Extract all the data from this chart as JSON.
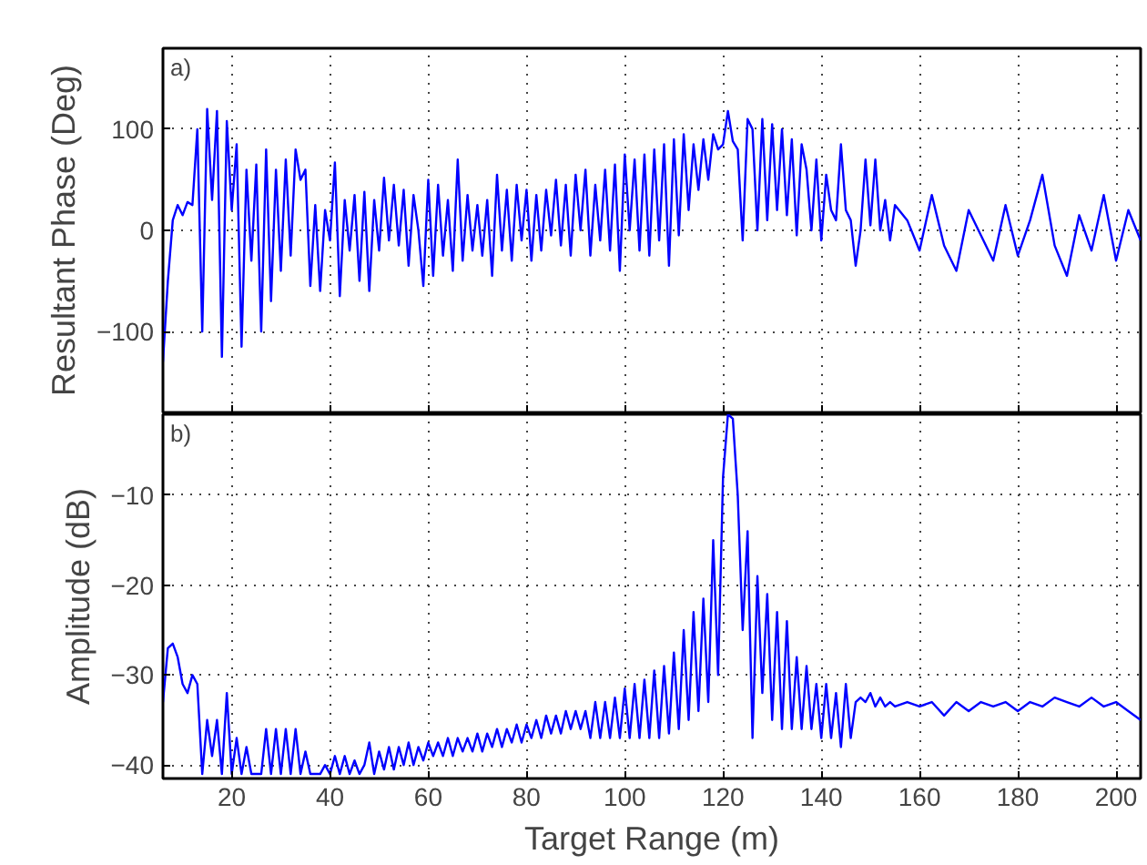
{
  "chart_data": [
    {
      "type": "line",
      "ylabel": "Resultant Phase (Deg)",
      "annotations": [
        "a)"
      ],
      "xlim": [
        6,
        205
      ],
      "ylim": [
        -180,
        180
      ],
      "xticks": [
        20,
        40,
        60,
        80,
        100,
        120,
        140,
        160,
        180,
        200
      ],
      "yticks": [
        -100,
        0,
        100
      ],
      "grid": true,
      "tick_labels": "y",
      "line_style": "solid",
      "series": [
        {
          "color": "#0000ff",
          "x": [
            6,
            7,
            8,
            9,
            10,
            11,
            12,
            13,
            14,
            15,
            16,
            17,
            18,
            19,
            20,
            21,
            22,
            23,
            24,
            25,
            26,
            27,
            28,
            29,
            30,
            31,
            32,
            33,
            34,
            35,
            36,
            37,
            38,
            39,
            40,
            41,
            42,
            43,
            44,
            45,
            46,
            47,
            48,
            49,
            50,
            51,
            52,
            53,
            54,
            55,
            56,
            57,
            58,
            59,
            60,
            61,
            62,
            63,
            64,
            65,
            66,
            67,
            68,
            69,
            70,
            71,
            72,
            73,
            74,
            75,
            76,
            77,
            78,
            79,
            80,
            81,
            82,
            83,
            84,
            85,
            86,
            87,
            88,
            89,
            90,
            91,
            92,
            93,
            94,
            95,
            96,
            97,
            98,
            99,
            100,
            101,
            102,
            103,
            104,
            105,
            106,
            107,
            108,
            109,
            110,
            111,
            112,
            113,
            114,
            115,
            116,
            117,
            118,
            119,
            120,
            121,
            122,
            123,
            124,
            125,
            126,
            127,
            128,
            129,
            130,
            131,
            132,
            133,
            134,
            135,
            136,
            137,
            138,
            139,
            140,
            141,
            142,
            143,
            144,
            145,
            146,
            147,
            148,
            149,
            150,
            151,
            152,
            153,
            154,
            155,
            157.5,
            160,
            162.5,
            165,
            167.5,
            170,
            172.5,
            175,
            177.5,
            180,
            182.5,
            185,
            187.5,
            190,
            192.5,
            195,
            197.5,
            200,
            202.5,
            205
          ],
          "values": [
            -130,
            -50,
            10,
            25,
            15,
            28,
            25,
            100,
            -100,
            120,
            30,
            118,
            -125,
            108,
            20,
            85,
            -115,
            60,
            -30,
            65,
            -100,
            80,
            -70,
            60,
            -40,
            70,
            -25,
            80,
            50,
            60,
            -55,
            25,
            -60,
            20,
            -10,
            67,
            -65,
            30,
            -20,
            35,
            -50,
            38,
            -60,
            30,
            -20,
            52,
            -10,
            45,
            -15,
            40,
            -35,
            35,
            0,
            -55,
            50,
            -45,
            45,
            -25,
            30,
            -40,
            70,
            -30,
            35,
            -20,
            25,
            -25,
            30,
            -45,
            55,
            -20,
            40,
            -30,
            45,
            -10,
            40,
            -30,
            35,
            -20,
            40,
            -5,
            50,
            -15,
            45,
            -25,
            55,
            0,
            60,
            -25,
            45,
            -10,
            60,
            -20,
            65,
            -40,
            75,
            0,
            70,
            -20,
            75,
            -25,
            80,
            -10,
            85,
            -35,
            90,
            -5,
            95,
            20,
            85,
            40,
            90,
            50,
            95,
            80,
            85,
            118,
            88,
            80,
            -10,
            110,
            100,
            0,
            110,
            10,
            105,
            20,
            100,
            15,
            90,
            -5,
            85,
            60,
            0,
            70,
            -10,
            55,
            20,
            10,
            85,
            20,
            10,
            -35,
            0,
            70,
            5,
            70,
            0,
            30,
            -10,
            25,
            10,
            -20,
            35,
            -15,
            -40,
            20,
            -5,
            -30,
            25,
            -25,
            10,
            55,
            -15,
            -45,
            15,
            -20,
            35,
            -30,
            20,
            -10
          ]
        }
      ]
    },
    {
      "type": "line",
      "xlabel": "Target Range (m)",
      "ylabel": "Amplitude (dB)",
      "annotations": [
        "b)"
      ],
      "xlim": [
        6,
        205
      ],
      "ylim": [
        -41.5,
        -1
      ],
      "xticks": [
        20,
        40,
        60,
        80,
        100,
        120,
        140,
        160,
        180,
        200
      ],
      "yticks": [
        -40,
        -30,
        -20,
        -10
      ],
      "grid": true,
      "line_style": "solid",
      "series": [
        {
          "color": "#0000ff",
          "x": [
            6,
            7,
            8,
            9,
            10,
            11,
            12,
            13,
            14,
            15,
            16,
            17,
            18,
            19,
            20,
            21,
            22,
            23,
            24,
            25,
            26,
            27,
            28,
            29,
            30,
            31,
            32,
            33,
            34,
            35,
            36,
            37,
            38,
            39,
            40,
            41,
            42,
            43,
            44,
            45,
            46,
            47,
            48,
            49,
            50,
            51,
            52,
            53,
            54,
            55,
            56,
            57,
            58,
            59,
            60,
            61,
            62,
            63,
            64,
            65,
            66,
            67,
            68,
            69,
            70,
            71,
            72,
            73,
            74,
            75,
            76,
            77,
            78,
            79,
            80,
            81,
            82,
            83,
            84,
            85,
            86,
            87,
            88,
            89,
            90,
            91,
            92,
            93,
            94,
            95,
            96,
            97,
            98,
            99,
            100,
            101,
            102,
            103,
            104,
            105,
            106,
            107,
            108,
            109,
            110,
            111,
            112,
            113,
            114,
            115,
            116,
            117,
            118,
            119,
            120,
            121,
            122,
            123,
            124,
            125,
            126,
            127,
            128,
            129,
            130,
            131,
            132,
            133,
            134,
            135,
            136,
            137,
            138,
            139,
            140,
            141,
            142,
            143,
            144,
            145,
            146,
            147,
            148,
            149,
            150,
            151,
            152,
            153,
            154,
            155,
            157.5,
            160,
            162.5,
            165,
            167.5,
            170,
            172.5,
            175,
            177.5,
            180,
            182.5,
            185,
            187.5,
            190,
            192.5,
            195,
            197.5,
            200,
            202.5,
            205
          ],
          "values": [
            -33,
            -27,
            -26.5,
            -28,
            -31,
            -32,
            -30,
            -31,
            -41,
            -35,
            -39,
            -35,
            -41,
            -32,
            -41,
            -37,
            -41,
            -38,
            -41,
            -41,
            -41,
            -36,
            -41,
            -36,
            -41,
            -36,
            -41,
            -36,
            -41,
            -38.5,
            -41,
            -41,
            -41,
            -40,
            -41,
            -39,
            -41,
            -39,
            -41,
            -39.5,
            -41,
            -40,
            -37.5,
            -41,
            -38.5,
            -40.5,
            -38,
            -40.5,
            -38,
            -40,
            -37.5,
            -40,
            -38,
            -39.5,
            -37.5,
            -39,
            -37.5,
            -39,
            -37,
            -39,
            -37,
            -38.5,
            -37,
            -38.5,
            -36.5,
            -38.5,
            -36.5,
            -38,
            -36,
            -38,
            -36,
            -37.5,
            -35.5,
            -37.5,
            -35.5,
            -37,
            -35,
            -37,
            -34.5,
            -36.5,
            -34.5,
            -36.5,
            -34,
            -36,
            -34,
            -36,
            -34,
            -37,
            -33,
            -37,
            -33,
            -37,
            -32.5,
            -37,
            -31.5,
            -37,
            -31,
            -37,
            -30.5,
            -37,
            -29.5,
            -37,
            -29,
            -36.5,
            -27.5,
            -36,
            -25,
            -35,
            -23,
            -34,
            -21.5,
            -33,
            -15,
            -30,
            -8,
            -1,
            -1.5,
            -10,
            -25,
            -14,
            -37,
            -19,
            -32,
            -21,
            -35,
            -23,
            -36,
            -24,
            -36,
            -28,
            -36,
            -29,
            -36,
            -31,
            -37,
            -31,
            -37,
            -32,
            -38,
            -31,
            -37,
            -33,
            -32.5,
            -33,
            -32,
            -33.5,
            -32.5,
            -33.5,
            -33,
            -33.5,
            -33,
            -33.5,
            -33,
            -34.5,
            -33,
            -34,
            -33,
            -33.5,
            -33,
            -34,
            -33,
            -33.5,
            -32.5,
            -33,
            -33.5,
            -32.5,
            -33.5,
            -33,
            -34,
            -35
          ]
        }
      ]
    }
  ]
}
